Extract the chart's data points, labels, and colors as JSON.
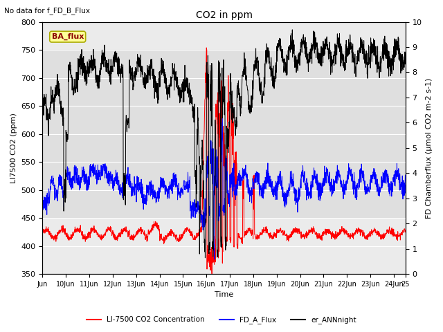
{
  "title": "CO2 in ppm",
  "subtitle": "No data for f_FD_B_Flux",
  "xlabel": "Time",
  "ylabel_left": "LI7500 CO2 (ppm)",
  "ylabel_right": "FD Chamberflux (μmol CO2 m-2 s-1)",
  "xlim": [
    0,
    15.5
  ],
  "ylim_left": [
    350,
    800
  ],
  "ylim_right": [
    0.0,
    10.0
  ],
  "yticks_left": [
    350,
    400,
    450,
    500,
    550,
    600,
    650,
    700,
    750,
    800
  ],
  "yticks_right": [
    0.0,
    1.0,
    2.0,
    3.0,
    4.0,
    5.0,
    6.0,
    7.0,
    8.0,
    9.0,
    10.0
  ],
  "xtick_labels": [
    "Jun",
    "10Jun",
    "11Jun",
    "12Jun",
    "13Jun",
    "14Jun",
    "15Jun",
    "16Jun",
    "17Jun",
    "18Jun",
    "19Jun",
    "20Jun",
    "21Jun",
    "22Jun",
    "23Jun",
    "24Jun",
    "25"
  ],
  "xtick_positions": [
    0,
    1,
    2,
    3,
    4,
    5,
    6,
    7,
    8,
    9,
    10,
    11,
    12,
    13,
    14,
    15,
    15.5
  ],
  "legend_entries": [
    "LI-7500 CO2 Concentration",
    "FD_A_Flux",
    "er_ANNnight"
  ],
  "legend_colors": [
    "red",
    "blue",
    "black"
  ],
  "color_red": "#ff0000",
  "color_blue": "#0000ff",
  "color_black": "#000000",
  "ba_flux_box_color": "#ffff99",
  "ba_flux_box_edge": "#aaaa00",
  "ba_flux_text_color": "#8b0000",
  "plot_bg_color": "#ebebeb",
  "grid_color": "#ffffff",
  "shade_ymin": 450,
  "shade_ymax": 750,
  "n_points": 2000
}
